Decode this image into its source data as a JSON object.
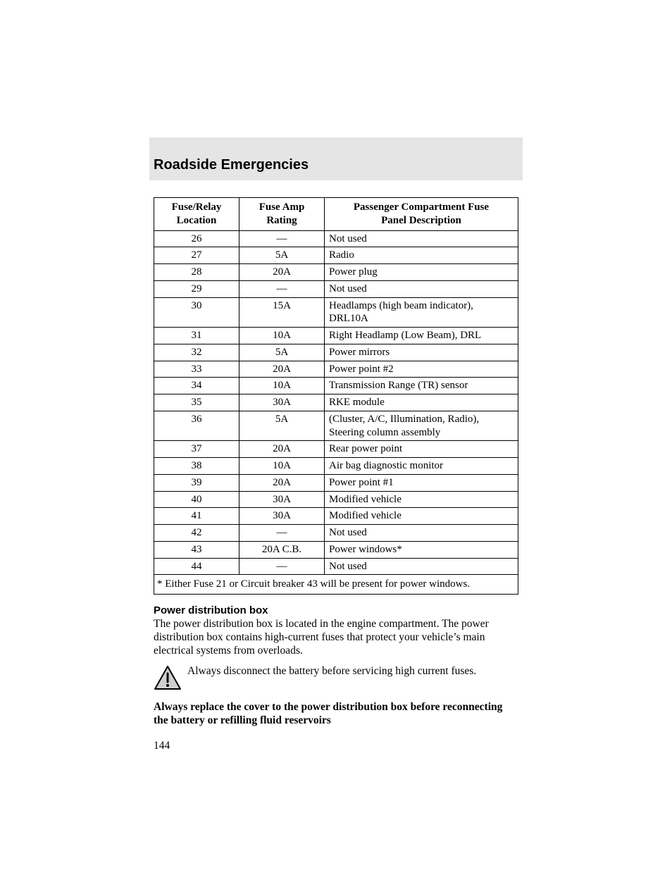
{
  "section_title": "Roadside Emergencies",
  "table": {
    "headers": {
      "col1_line1": "Fuse/Relay",
      "col1_line2": "Location",
      "col2_line1": "Fuse Amp",
      "col2_line2": "Rating",
      "col3_line1": "Passenger Compartment Fuse",
      "col3_line2": "Panel Description"
    },
    "rows": [
      {
        "loc": "26",
        "amp": "—",
        "desc": "Not used"
      },
      {
        "loc": "27",
        "amp": "5A",
        "desc": "Radio"
      },
      {
        "loc": "28",
        "amp": "20A",
        "desc": "Power plug"
      },
      {
        "loc": "29",
        "amp": "—",
        "desc": "Not used"
      },
      {
        "loc": "30",
        "amp": "15A",
        "desc": "Headlamps (high beam indicator), DRL10A"
      },
      {
        "loc": "31",
        "amp": "10A",
        "desc": "Right Headlamp (Low Beam), DRL"
      },
      {
        "loc": "32",
        "amp": "5A",
        "desc": "Power mirrors"
      },
      {
        "loc": "33",
        "amp": "20A",
        "desc": "Power point #2"
      },
      {
        "loc": "34",
        "amp": "10A",
        "desc": "Transmission Range (TR) sensor"
      },
      {
        "loc": "35",
        "amp": "30A",
        "desc": "RKE module"
      },
      {
        "loc": "36",
        "amp": "5A",
        "desc": "(Cluster, A/C, Illumination, Radio), Steering column assembly"
      },
      {
        "loc": "37",
        "amp": "20A",
        "desc": "Rear power point"
      },
      {
        "loc": "38",
        "amp": "10A",
        "desc": "Air bag diagnostic monitor"
      },
      {
        "loc": "39",
        "amp": "20A",
        "desc": "Power point #1"
      },
      {
        "loc": "40",
        "amp": "30A",
        "desc": "Modified vehicle"
      },
      {
        "loc": "41",
        "amp": "30A",
        "desc": "Modified vehicle"
      },
      {
        "loc": "42",
        "amp": "—",
        "desc": "Not used"
      },
      {
        "loc": "43",
        "amp": "20A C.B.",
        "desc": "Power windows*"
      },
      {
        "loc": "44",
        "amp": "—",
        "desc": "Not used"
      }
    ],
    "footnote": "* Either Fuse 21 or Circuit breaker 43 will be present for power windows."
  },
  "subhead": "Power distribution box",
  "body_para": "The power distribution box is located in the engine compartment. The power distribution box contains high-current fuses that protect your vehicle’s main electrical systems from overloads.",
  "warning_text": "Always disconnect the battery before servicing high current fuses.",
  "bold_note": "Always replace the cover to the power distribution box before reconnecting the battery or refilling fluid reservoirs",
  "page_number": "144",
  "colors": {
    "banner_bg": "#e5e5e5",
    "text": "#000000",
    "icon_fill": "#cfcfcf",
    "icon_stroke": "#000000"
  }
}
